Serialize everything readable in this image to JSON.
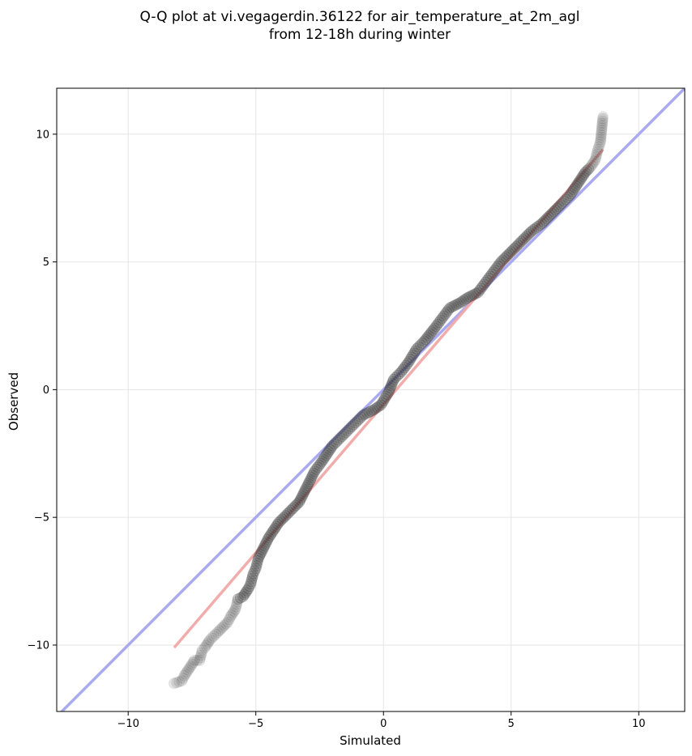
{
  "chart_data": {
    "type": "scatter",
    "title": "Q-Q plot at vi.vegagerdin.36122 for air_temperature_at_2m_agl",
    "subtitle": "from 12-18h during winter",
    "xlabel": "Simulated",
    "ylabel": "Observed",
    "xlim": [
      -12.8,
      11.8
    ],
    "ylim": [
      -12.6,
      11.8
    ],
    "grid": true,
    "x_ticks": [
      -10,
      -5,
      0,
      5,
      10
    ],
    "y_ticks": [
      -10,
      -5,
      0,
      5,
      10
    ],
    "x_tick_labels": [
      "−10",
      "−5",
      "0",
      "5",
      "10"
    ],
    "y_tick_labels": [
      "−10",
      "−5",
      "0",
      "5",
      "10"
    ],
    "reference_line": {
      "slope": 1,
      "intercept": 0,
      "color": "#aaaaf0"
    },
    "fit_line": {
      "x": [
        -8.2,
        8.6
      ],
      "y": [
        -10.1,
        9.4
      ],
      "color": "#f0a8a8"
    },
    "marker_color": "#333333",
    "qq_points": [
      [
        -8.2,
        -11.5
      ],
      [
        -7.9,
        -11.4
      ],
      [
        -7.8,
        -11.2
      ],
      [
        -7.4,
        -10.6
      ],
      [
        -7.2,
        -10.6
      ],
      [
        -7.1,
        -10.2
      ],
      [
        -7.0,
        -10.1
      ],
      [
        -6.8,
        -9.8
      ],
      [
        -6.5,
        -9.5
      ],
      [
        -6.3,
        -9.3
      ],
      [
        -6.1,
        -9.1
      ],
      [
        -6.0,
        -8.9
      ],
      [
        -5.8,
        -8.6
      ],
      [
        -5.7,
        -8.2
      ],
      [
        -5.5,
        -8.1
      ],
      [
        -5.3,
        -7.8
      ],
      [
        -5.2,
        -7.6
      ],
      [
        -5.1,
        -7.2
      ],
      [
        -5.0,
        -7.0
      ],
      [
        -4.9,
        -6.6
      ],
      [
        -4.7,
        -6.2
      ],
      [
        -4.5,
        -5.8
      ],
      [
        -4.3,
        -5.5
      ],
      [
        -4.1,
        -5.2
      ],
      [
        -3.9,
        -5.0
      ],
      [
        -3.7,
        -4.8
      ],
      [
        -3.5,
        -4.6
      ],
      [
        -3.3,
        -4.4
      ],
      [
        -3.1,
        -4.0
      ],
      [
        -2.9,
        -3.6
      ],
      [
        -2.7,
        -3.2
      ],
      [
        -2.4,
        -2.8
      ],
      [
        -2.2,
        -2.5
      ],
      [
        -2.0,
        -2.2
      ],
      [
        -1.7,
        -1.9
      ],
      [
        -1.4,
        -1.6
      ],
      [
        -1.1,
        -1.3
      ],
      [
        -0.8,
        -1.0
      ],
      [
        -0.4,
        -0.8
      ],
      [
        -0.1,
        -0.6
      ],
      [
        0.2,
        -0.1
      ],
      [
        0.4,
        0.4
      ],
      [
        0.7,
        0.7
      ],
      [
        1.0,
        1.1
      ],
      [
        1.3,
        1.6
      ],
      [
        1.6,
        1.9
      ],
      [
        2.0,
        2.4
      ],
      [
        2.3,
        2.8
      ],
      [
        2.6,
        3.2
      ],
      [
        3.0,
        3.4
      ],
      [
        3.3,
        3.6
      ],
      [
        3.7,
        3.8
      ],
      [
        4.0,
        4.2
      ],
      [
        4.3,
        4.6
      ],
      [
        4.6,
        5.0
      ],
      [
        5.0,
        5.4
      ],
      [
        5.4,
        5.8
      ],
      [
        5.8,
        6.2
      ],
      [
        6.2,
        6.5
      ],
      [
        6.6,
        6.9
      ],
      [
        7.0,
        7.3
      ],
      [
        7.3,
        7.6
      ],
      [
        7.5,
        7.9
      ],
      [
        7.7,
        8.2
      ],
      [
        7.9,
        8.5
      ],
      [
        8.1,
        8.7
      ],
      [
        8.3,
        9.0
      ],
      [
        8.4,
        9.4
      ],
      [
        8.5,
        9.7
      ],
      [
        8.6,
        10.7
      ]
    ]
  }
}
